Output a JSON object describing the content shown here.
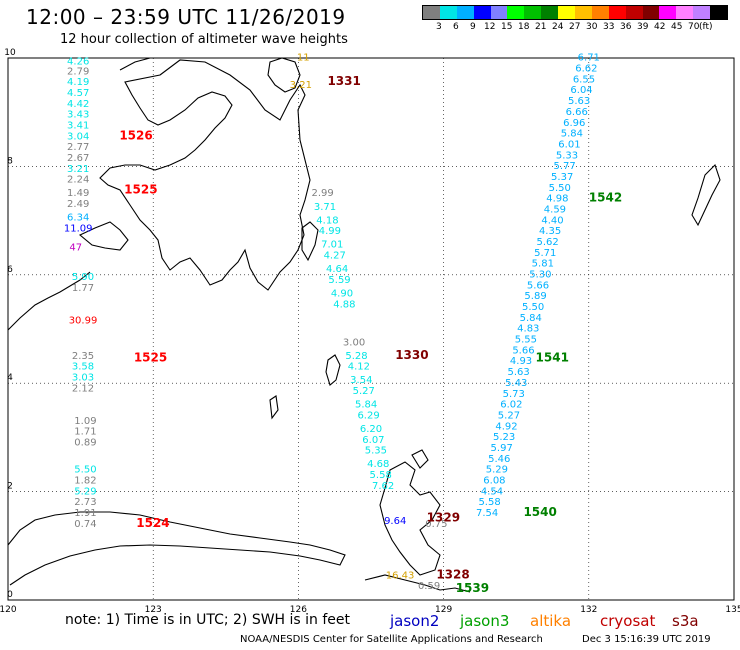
{
  "title": "12:00 – 23:59 UTC 11/26/2019",
  "subtitle": "12 hour collection of altimeter wave heights",
  "colorbar": {
    "colors": [
      "#7f7f7f",
      "#00e5e5",
      "#00b0ff",
      "#0000ff",
      "#8080ff",
      "#00ff00",
      "#00c000",
      "#008000",
      "#ffff00",
      "#ffc000",
      "#ff8000",
      "#ff0000",
      "#c00000",
      "#800000",
      "#ff00ff",
      "#ff80ff",
      "#c080ff",
      "#000000"
    ],
    "labels": [
      "3",
      "6",
      "9",
      "12",
      "15",
      "18",
      "21",
      "24",
      "27",
      "30",
      "33",
      "36",
      "39",
      "42",
      "45",
      "70",
      "(ft)"
    ]
  },
  "axes": {
    "x_ticks": [
      "120",
      "123",
      "126",
      "129",
      "132",
      "135"
    ],
    "y_ticks": [
      "0",
      "2",
      "4",
      "6",
      "8",
      "10"
    ]
  },
  "tracks": [
    {
      "id": "1331",
      "color": "#800000",
      "points": [
        {
          "lat": 9.95,
          "lon": 126.1,
          "v": "11",
          "c": "#d4a000"
        },
        {
          "lat": 9.45,
          "lon": 126.05,
          "v": "3.21",
          "c": "#d4a000"
        }
      ],
      "label": {
        "text": "1331",
        "lat": 9.5,
        "lon": 126.6
      }
    },
    {
      "id": "1526",
      "color": "#ff0000",
      "points": [
        {
          "lat": 9.88,
          "lon": 121.45,
          "v": "4.26",
          "c": "#00e5e5"
        },
        {
          "lat": 9.7,
          "lon": 121.45,
          "v": "2.79",
          "c": "#7f7f7f"
        },
        {
          "lat": 9.5,
          "lon": 121.45,
          "v": "4.19",
          "c": "#00e5e5"
        },
        {
          "lat": 9.3,
          "lon": 121.45,
          "v": "4.57",
          "c": "#00e5e5"
        },
        {
          "lat": 9.1,
          "lon": 121.45,
          "v": "4.42",
          "c": "#00e5e5"
        },
        {
          "lat": 8.9,
          "lon": 121.45,
          "v": "3.43",
          "c": "#00e5e5"
        },
        {
          "lat": 8.7,
          "lon": 121.45,
          "v": "3.41",
          "c": "#00e5e5"
        },
        {
          "lat": 8.5,
          "lon": 121.45,
          "v": "3.04",
          "c": "#00e5e5"
        },
        {
          "lat": 8.3,
          "lon": 121.45,
          "v": "2.77",
          "c": "#7f7f7f"
        },
        {
          "lat": 8.1,
          "lon": 121.45,
          "v": "2.67",
          "c": "#7f7f7f"
        },
        {
          "lat": 7.9,
          "lon": 121.45,
          "v": "3.21",
          "c": "#00e5e5"
        },
        {
          "lat": 7.7,
          "lon": 121.45,
          "v": "2.24",
          "c": "#7f7f7f"
        }
      ],
      "label": {
        "text": "1526",
        "lat": 8.5,
        "lon": 122.3
      }
    },
    {
      "id": "1525",
      "color": "#ff0000",
      "points": [
        {
          "lat": 7.45,
          "lon": 121.45,
          "v": "1.49",
          "c": "#7f7f7f"
        },
        {
          "lat": 7.25,
          "lon": 121.45,
          "v": "2.49",
          "c": "#7f7f7f"
        },
        {
          "lat": 7.0,
          "lon": 121.45,
          "v": "6.34",
          "c": "#00b0ff"
        },
        {
          "lat": 6.8,
          "lon": 121.45,
          "v": "11.09",
          "c": "#0000ff"
        },
        {
          "lat": 6.45,
          "lon": 121.4,
          "v": "47",
          "c": "#c000c0"
        },
        {
          "lat": 5.9,
          "lon": 121.55,
          "v": "5.90",
          "c": "#00e5e5"
        },
        {
          "lat": 5.7,
          "lon": 121.55,
          "v": "1.77",
          "c": "#7f7f7f"
        },
        {
          "lat": 5.1,
          "lon": 121.55,
          "v": "30.99",
          "c": "#ff0000"
        },
        {
          "lat": 4.45,
          "lon": 121.55,
          "v": "2.35",
          "c": "#7f7f7f"
        },
        {
          "lat": 4.25,
          "lon": 121.55,
          "v": "3.58",
          "c": "#00e5e5"
        },
        {
          "lat": 4.05,
          "lon": 121.55,
          "v": "3.03",
          "c": "#00e5e5"
        },
        {
          "lat": 3.85,
          "lon": 121.55,
          "v": "2.12",
          "c": "#7f7f7f"
        }
      ],
      "label": {
        "text": "1525",
        "lat": 7.5,
        "lon": 122.4
      },
      "label2": {
        "text": "1525",
        "lat": 4.4,
        "lon": 122.6
      }
    },
    {
      "id": "1524",
      "color": "#ff0000",
      "points": [
        {
          "lat": 3.25,
          "lon": 121.6,
          "v": "1.09",
          "c": "#7f7f7f"
        },
        {
          "lat": 3.05,
          "lon": 121.6,
          "v": "1.71",
          "c": "#7f7f7f"
        },
        {
          "lat": 2.85,
          "lon": 121.6,
          "v": "0.89",
          "c": "#7f7f7f"
        },
        {
          "lat": 2.35,
          "lon": 121.6,
          "v": "5.50",
          "c": "#00e5e5"
        },
        {
          "lat": 2.15,
          "lon": 121.6,
          "v": "1.82",
          "c": "#7f7f7f"
        },
        {
          "lat": 1.95,
          "lon": 121.6,
          "v": "5.29",
          "c": "#00e5e5"
        },
        {
          "lat": 1.75,
          "lon": 121.6,
          "v": "2.73",
          "c": "#7f7f7f"
        },
        {
          "lat": 1.55,
          "lon": 121.6,
          "v": "1.91",
          "c": "#7f7f7f"
        },
        {
          "lat": 1.35,
          "lon": 121.6,
          "v": "0.74",
          "c": "#7f7f7f"
        }
      ],
      "label": {
        "text": "1524",
        "lat": 1.35,
        "lon": 122.65
      }
    },
    {
      "id": "1330",
      "color": "#800000",
      "points": [
        {
          "lat": 7.45,
          "lon": 126.5,
          "v": "2.99",
          "c": "#7f7f7f"
        },
        {
          "lat": 7.2,
          "lon": 126.55,
          "v": "3.71",
          "c": "#00e5e5"
        },
        {
          "lat": 6.95,
          "lon": 126.6,
          "v": "4.18",
          "c": "#00e5e5"
        },
        {
          "lat": 6.75,
          "lon": 126.65,
          "v": "4.99",
          "c": "#00e5e5"
        },
        {
          "lat": 6.5,
          "lon": 126.7,
          "v": "7.01",
          "c": "#00e5e5"
        },
        {
          "lat": 6.3,
          "lon": 126.75,
          "v": "4.27",
          "c": "#00e5e5"
        },
        {
          "lat": 6.05,
          "lon": 126.8,
          "v": "4.64",
          "c": "#00e5e5"
        },
        {
          "lat": 5.85,
          "lon": 126.85,
          "v": "5.59",
          "c": "#00e5e5"
        },
        {
          "lat": 5.6,
          "lon": 126.9,
          "v": "4.90",
          "c": "#00e5e5"
        },
        {
          "lat": 5.4,
          "lon": 126.95,
          "v": "4.88",
          "c": "#00e5e5"
        },
        {
          "lat": 4.7,
          "lon": 127.15,
          "v": "3.00",
          "c": "#7f7f7f"
        },
        {
          "lat": 4.45,
          "lon": 127.2,
          "v": "5.28",
          "c": "#00e5e5"
        },
        {
          "lat": 4.25,
          "lon": 127.25,
          "v": "4.12",
          "c": "#00e5e5"
        },
        {
          "lat": 4.0,
          "lon": 127.3,
          "v": "3.54",
          "c": "#00e5e5"
        },
        {
          "lat": 3.8,
          "lon": 127.35,
          "v": "5.27",
          "c": "#00e5e5"
        },
        {
          "lat": 3.55,
          "lon": 127.4,
          "v": "5.84",
          "c": "#00e5e5"
        },
        {
          "lat": 3.35,
          "lon": 127.45,
          "v": "6.29",
          "c": "#00e5e5"
        },
        {
          "lat": 3.1,
          "lon": 127.5,
          "v": "6.20",
          "c": "#00e5e5"
        },
        {
          "lat": 2.9,
          "lon": 127.55,
          "v": "6.07",
          "c": "#00e5e5"
        },
        {
          "lat": 2.7,
          "lon": 127.6,
          "v": "5.35",
          "c": "#00e5e5"
        },
        {
          "lat": 2.45,
          "lon": 127.65,
          "v": "4.68",
          "c": "#00e5e5"
        },
        {
          "lat": 2.25,
          "lon": 127.7,
          "v": "5.58",
          "c": "#00e5e5"
        },
        {
          "lat": 2.05,
          "lon": 127.75,
          "v": "7.62",
          "c": "#00e5e5"
        }
      ],
      "label": {
        "text": "1330",
        "lat": 4.45,
        "lon": 128.0
      }
    },
    {
      "id": "1329",
      "color": "#800000",
      "points": [
        {
          "lat": 1.4,
          "lon": 128.0,
          "v": "9.64",
          "c": "#0000ff"
        },
        {
          "lat": 1.35,
          "lon": 128.85,
          "v": "0.75",
          "c": "#7f7f7f"
        }
      ],
      "label": {
        "text": "1329",
        "lat": 1.45,
        "lon": 128.65
      }
    },
    {
      "id": "1328",
      "color": "#800000",
      "points": [
        {
          "lat": 0.4,
          "lon": 128.1,
          "v": "16.43",
          "c": "#d4a000"
        },
        {
          "lat": 0.2,
          "lon": 128.7,
          "v": "0.59",
          "c": "#7f7f7f"
        }
      ],
      "label": {
        "text": "1328",
        "lat": 0.4,
        "lon": 128.85
      }
    },
    {
      "id": "1542",
      "color": "#008000",
      "points": [
        {
          "lat": 9.95,
          "lon": 132.0,
          "v": "6.71",
          "c": "#00b0ff"
        },
        {
          "lat": 9.75,
          "lon": 131.95,
          "v": "6.62",
          "c": "#00b0ff"
        },
        {
          "lat": 9.55,
          "lon": 131.9,
          "v": "6.55",
          "c": "#00b0ff"
        },
        {
          "lat": 9.35,
          "lon": 131.85,
          "v": "6.04",
          "c": "#00b0ff"
        },
        {
          "lat": 9.15,
          "lon": 131.8,
          "v": "5.63",
          "c": "#00b0ff"
        },
        {
          "lat": 8.95,
          "lon": 131.75,
          "v": "6.66",
          "c": "#00b0ff"
        },
        {
          "lat": 8.75,
          "lon": 131.7,
          "v": "6.96",
          "c": "#00b0ff"
        },
        {
          "lat": 8.55,
          "lon": 131.65,
          "v": "5.84",
          "c": "#00b0ff"
        },
        {
          "lat": 8.35,
          "lon": 131.6,
          "v": "6.01",
          "c": "#00b0ff"
        },
        {
          "lat": 8.15,
          "lon": 131.55,
          "v": "5.33",
          "c": "#00b0ff"
        },
        {
          "lat": 7.95,
          "lon": 131.5,
          "v": "5.77",
          "c": "#00b0ff"
        },
        {
          "lat": 7.75,
          "lon": 131.45,
          "v": "5.37",
          "c": "#00b0ff"
        },
        {
          "lat": 7.55,
          "lon": 131.4,
          "v": "5.50",
          "c": "#00b0ff"
        },
        {
          "lat": 7.35,
          "lon": 131.35,
          "v": "4.98",
          "c": "#00b0ff"
        },
        {
          "lat": 7.15,
          "lon": 131.3,
          "v": "4.59",
          "c": "#00b0ff"
        },
        {
          "lat": 6.95,
          "lon": 131.25,
          "v": "4.40",
          "c": "#00b0ff"
        },
        {
          "lat": 6.75,
          "lon": 131.2,
          "v": "4.35",
          "c": "#00b0ff"
        },
        {
          "lat": 6.55,
          "lon": 131.15,
          "v": "5.62",
          "c": "#00b0ff"
        },
        {
          "lat": 6.35,
          "lon": 131.1,
          "v": "5.71",
          "c": "#00b0ff"
        },
        {
          "lat": 6.15,
          "lon": 131.05,
          "v": "5.81",
          "c": "#00b0ff"
        },
        {
          "lat": 5.95,
          "lon": 131.0,
          "v": "5.30",
          "c": "#00b0ff"
        }
      ],
      "label": {
        "text": "1542",
        "lat": 7.35,
        "lon": 132.0
      }
    },
    {
      "id": "1541",
      "color": "#008000",
      "points": [
        {
          "lat": 5.75,
          "lon": 130.95,
          "v": "5.66",
          "c": "#00b0ff"
        },
        {
          "lat": 5.55,
          "lon": 130.9,
          "v": "5.89",
          "c": "#00b0ff"
        },
        {
          "lat": 5.35,
          "lon": 130.85,
          "v": "5.50",
          "c": "#00b0ff"
        },
        {
          "lat": 5.15,
          "lon": 130.8,
          "v": "5.84",
          "c": "#00b0ff"
        },
        {
          "lat": 4.95,
          "lon": 130.75,
          "v": "4.83",
          "c": "#00b0ff"
        },
        {
          "lat": 4.75,
          "lon": 130.7,
          "v": "5.55",
          "c": "#00b0ff"
        },
        {
          "lat": 4.55,
          "lon": 130.65,
          "v": "5.66",
          "c": "#00b0ff"
        },
        {
          "lat": 4.35,
          "lon": 130.6,
          "v": "4.93",
          "c": "#00b0ff"
        },
        {
          "lat": 4.15,
          "lon": 130.55,
          "v": "5.63",
          "c": "#00b0ff"
        },
        {
          "lat": 3.95,
          "lon": 130.5,
          "v": "5.43",
          "c": "#00b0ff"
        },
        {
          "lat": 3.75,
          "lon": 130.45,
          "v": "5.73",
          "c": "#00b0ff"
        },
        {
          "lat": 3.55,
          "lon": 130.4,
          "v": "6.02",
          "c": "#00b0ff"
        },
        {
          "lat": 3.35,
          "lon": 130.35,
          "v": "5.27",
          "c": "#00b0ff"
        },
        {
          "lat": 3.15,
          "lon": 130.3,
          "v": "4.92",
          "c": "#00b0ff"
        },
        {
          "lat": 2.95,
          "lon": 130.25,
          "v": "5.23",
          "c": "#00b0ff"
        },
        {
          "lat": 2.75,
          "lon": 130.2,
          "v": "5.97",
          "c": "#00b0ff"
        },
        {
          "lat": 2.55,
          "lon": 130.15,
          "v": "5.46",
          "c": "#00b0ff"
        },
        {
          "lat": 2.35,
          "lon": 130.1,
          "v": "5.29",
          "c": "#00b0ff"
        },
        {
          "lat": 2.15,
          "lon": 130.05,
          "v": "6.08",
          "c": "#00b0ff"
        },
        {
          "lat": 1.95,
          "lon": 130.0,
          "v": "4.54",
          "c": "#00b0ff"
        },
        {
          "lat": 1.75,
          "lon": 129.95,
          "v": "5.58",
          "c": "#00b0ff"
        },
        {
          "lat": 1.55,
          "lon": 129.9,
          "v": "7.54",
          "c": "#00b0ff"
        }
      ],
      "label": {
        "text": "1541",
        "lat": 4.4,
        "lon": 130.9
      },
      "label2": {
        "text": "1540",
        "lat": 1.55,
        "lon": 130.65
      }
    },
    {
      "id": "1539",
      "color": "#008000",
      "points": [],
      "label": {
        "text": "1539",
        "lat": 0.15,
        "lon": 129.25
      }
    }
  ],
  "legend_note": "note:  1) Time is in UTC;  2) SWH is in feet",
  "satellites": [
    {
      "name": "jason2",
      "color": "#0000c0"
    },
    {
      "name": "jason3",
      "color": "#00a000"
    },
    {
      "name": "altika",
      "color": "#ff8000"
    },
    {
      "name": "cryosat",
      "color": "#c00000"
    },
    {
      "name": "s3a",
      "color": "#800000"
    }
  ],
  "footer_credit": "NOAA/NESDIS Center for Satellite Applications and Research",
  "footer_time": "Dec  3 15:16:39 UTC 2019"
}
